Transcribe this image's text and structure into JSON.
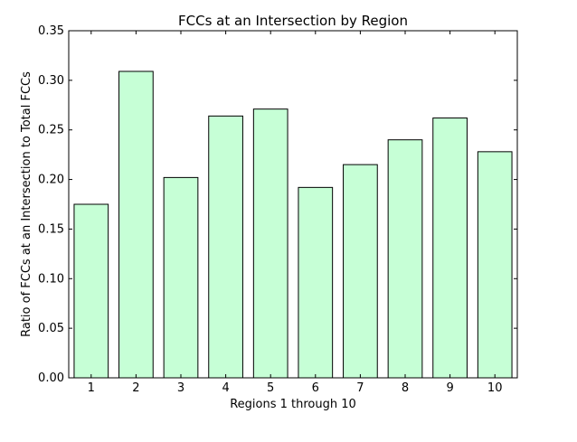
{
  "chart_data": {
    "type": "bar",
    "title": "FCCs at an Intersection by Region",
    "xlabel": "Regions 1 through 10",
    "ylabel": "Ratio of FCCs at an Intersection to Total FCCs",
    "categories": [
      "1",
      "2",
      "3",
      "4",
      "5",
      "6",
      "7",
      "8",
      "9",
      "10"
    ],
    "values": [
      0.175,
      0.309,
      0.202,
      0.264,
      0.271,
      0.192,
      0.215,
      0.24,
      0.262,
      0.228
    ],
    "ylim": [
      0,
      0.35
    ],
    "yticks": [
      "0.00",
      "0.05",
      "0.10",
      "0.15",
      "0.20",
      "0.25",
      "0.30",
      "0.35"
    ],
    "grid": false,
    "legend": "none",
    "colors": {
      "bar_fill": "#c6ffd6",
      "bar_edge": "#000000"
    }
  }
}
